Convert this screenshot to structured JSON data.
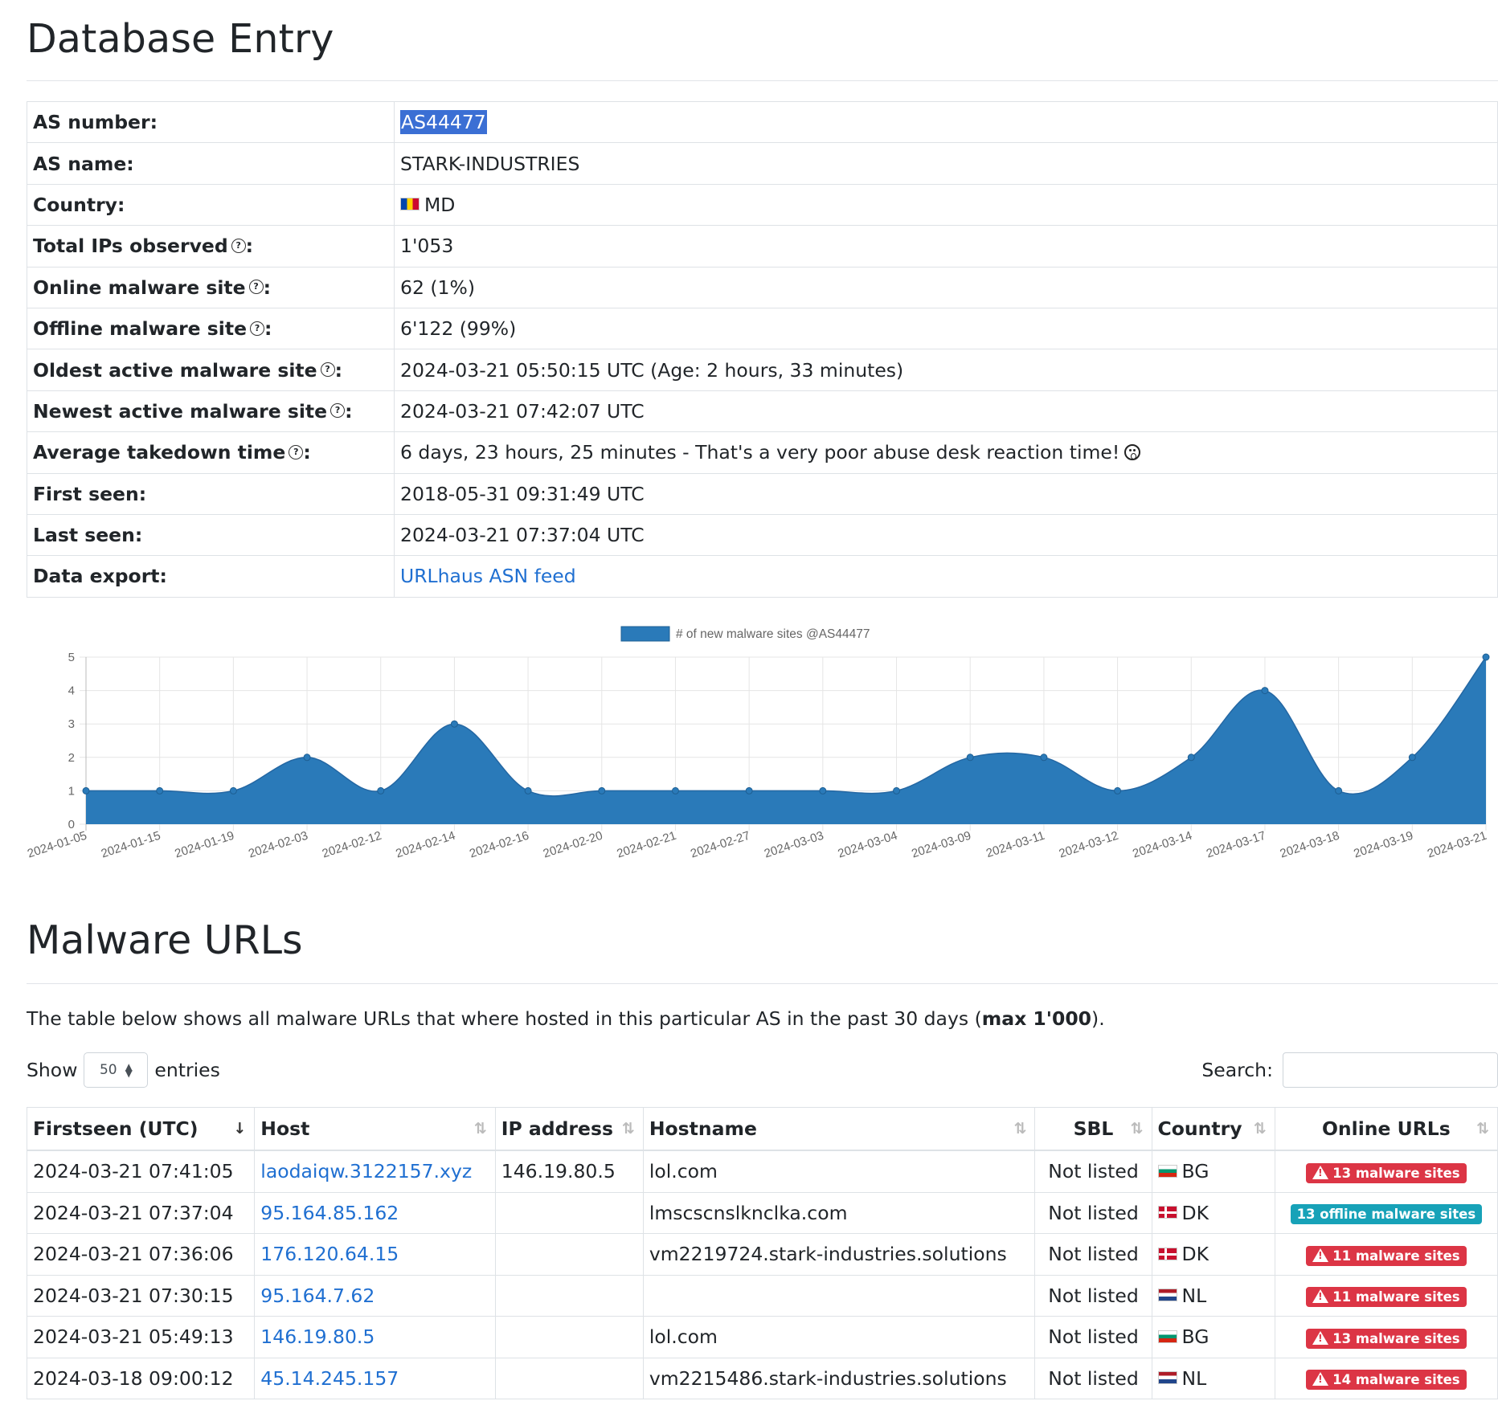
{
  "header": {
    "title": "Database Entry"
  },
  "info": [
    {
      "key": "AS number:",
      "value": "AS44477",
      "help": false,
      "type": "selected"
    },
    {
      "key": "AS name:",
      "value": "STARK-INDUSTRIES",
      "help": false,
      "type": "text"
    },
    {
      "key": "Country:",
      "value": "MD",
      "help": false,
      "type": "flag",
      "flag": "flag-md"
    },
    {
      "key": "Total IPs observed",
      "value": "1'053",
      "help": true,
      "type": "text"
    },
    {
      "key": "Online malware site",
      "value": "62 (1%)",
      "help": true,
      "type": "text"
    },
    {
      "key": "Offline malware site",
      "value": "6'122 (99%)",
      "help": true,
      "type": "text"
    },
    {
      "key": "Oldest active malware site",
      "value": "2024-03-21 05:50:15 UTC (Age: 2 hours, 33 minutes)",
      "help": true,
      "type": "text"
    },
    {
      "key": "Newest active malware site",
      "value": "2024-03-21 07:42:07 UTC",
      "help": true,
      "type": "text"
    },
    {
      "key": "Average takedown time",
      "value": "6 days, 23 hours, 25 minutes - That's a very poor abuse desk reaction time!",
      "help": true,
      "type": "emoji"
    },
    {
      "key": "First seen:",
      "value": "2018-05-31 09:31:49 UTC",
      "help": false,
      "type": "text"
    },
    {
      "key": "Last seen:",
      "value": "2024-03-21 07:37:04 UTC",
      "help": false,
      "type": "text"
    },
    {
      "key": "Data export:",
      "value": "URLhaus ASN feed",
      "help": false,
      "type": "link"
    }
  ],
  "help_suffix": ":",
  "help_glyph": "?",
  "chart_data": {
    "type": "area",
    "series": [
      {
        "name": "# of new malware sites @AS44477",
        "color": "#2a7ab9"
      }
    ],
    "categories": [
      "2024-01-05",
      "2024-01-15",
      "2024-01-19",
      "2024-02-03",
      "2024-02-12",
      "2024-02-14",
      "2024-02-16",
      "2024-02-20",
      "2024-02-21",
      "2024-02-27",
      "2024-03-03",
      "2024-03-04",
      "2024-03-09",
      "2024-03-11",
      "2024-03-12",
      "2024-03-14",
      "2024-03-17",
      "2024-03-18",
      "2024-03-19",
      "2024-03-21"
    ],
    "values": [
      1,
      1,
      1,
      2,
      1,
      3,
      1,
      1,
      1,
      1,
      1,
      1,
      2,
      2,
      1,
      2,
      4,
      1,
      2,
      5
    ],
    "ylim": [
      0,
      5
    ],
    "yticks": [
      0,
      1,
      2,
      3,
      4,
      5
    ],
    "grid": true,
    "legend": "top"
  },
  "section": {
    "title": "Malware URLs",
    "description_pre": "The table below shows all malware URLs that where hosted in this particular AS in the past 30 days (",
    "description_bold": "max 1'000",
    "description_post": ")."
  },
  "controls": {
    "show_label": "Show",
    "entries_value": "50",
    "entries_label": "entries",
    "search_label": "Search:"
  },
  "table": {
    "columns": [
      "Firstseen (UTC)",
      "Host",
      "IP address",
      "Hostname",
      "SBL",
      "Country",
      "Online URLs"
    ],
    "rows": [
      {
        "firstseen": "2024-03-21 07:41:05",
        "host": "laodaiqw.3122157.xyz",
        "ip": "146.19.80.5",
        "hostname": "lol.com",
        "sbl": "Not listed",
        "country": "BG",
        "flag": "flag-bg",
        "online": "13 malware sites",
        "status": "red"
      },
      {
        "firstseen": "2024-03-21 07:37:04",
        "host": "95.164.85.162",
        "ip": "",
        "hostname": "lmscscnslknclka.com",
        "sbl": "Not listed",
        "country": "DK",
        "flag": "flag-dk",
        "online": "13 offline malware sites",
        "status": "teal"
      },
      {
        "firstseen": "2024-03-21 07:36:06",
        "host": "176.120.64.15",
        "ip": "",
        "hostname": "vm2219724.stark-industries.solutions",
        "sbl": "Not listed",
        "country": "DK",
        "flag": "flag-dk",
        "online": "11 malware sites",
        "status": "red"
      },
      {
        "firstseen": "2024-03-21 07:30:15",
        "host": "95.164.7.62",
        "ip": "",
        "hostname": "",
        "sbl": "Not listed",
        "country": "NL",
        "flag": "flag-nl",
        "online": "11 malware sites",
        "status": "red"
      },
      {
        "firstseen": "2024-03-21 05:49:13",
        "host": "146.19.80.5",
        "ip": "",
        "hostname": "lol.com",
        "sbl": "Not listed",
        "country": "BG",
        "flag": "flag-bg",
        "online": "13 malware sites",
        "status": "red"
      },
      {
        "firstseen": "2024-03-18 09:00:12",
        "host": "45.14.245.157",
        "ip": "",
        "hostname": "vm2215486.stark-industries.solutions",
        "sbl": "Not listed",
        "country": "NL",
        "flag": "flag-nl",
        "online": "14 malware sites",
        "status": "red"
      }
    ]
  }
}
